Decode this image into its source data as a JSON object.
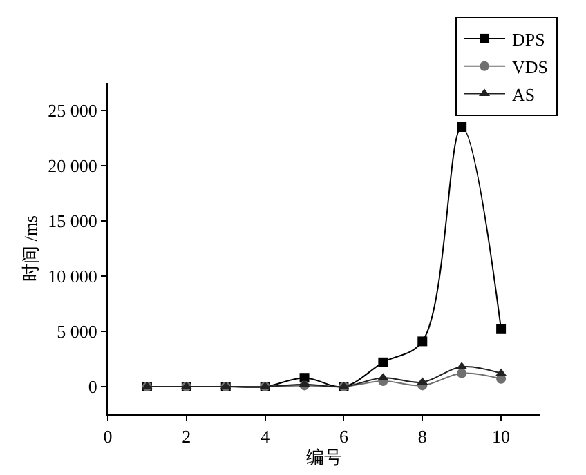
{
  "chart_data": {
    "type": "line",
    "xlabel": "编号",
    "ylabel": "时间 /ms",
    "x": [
      1,
      2,
      3,
      4,
      5,
      6,
      7,
      8,
      9,
      10
    ],
    "series": [
      {
        "name": "DPS",
        "color": "#000000",
        "marker": "square",
        "values": [
          0,
          0,
          0,
          0,
          800,
          0,
          2200,
          4100,
          23500,
          5200
        ]
      },
      {
        "name": "VDS",
        "color": "#707070",
        "marker": "circle",
        "values": [
          0,
          0,
          0,
          0,
          100,
          0,
          500,
          100,
          1200,
          700
        ]
      },
      {
        "name": "AS",
        "color": "#222222",
        "marker": "triangle",
        "values": [
          0,
          0,
          0,
          0,
          200,
          0,
          800,
          400,
          1800,
          1200
        ]
      }
    ],
    "xlim": [
      0,
      11
    ],
    "xticks": [
      0,
      2,
      4,
      6,
      8,
      10
    ],
    "ylim": [
      -2500,
      27500
    ],
    "yticks": [
      0,
      {
        "value": 5000,
        "label": "5 000"
      },
      {
        "value": 10000,
        "label": "10 000"
      },
      {
        "value": 15000,
        "label": "15 000"
      },
      {
        "value": 20000,
        "label": "20 000"
      },
      {
        "value": 25000,
        "label": "25 000"
      }
    ],
    "grid": false,
    "legend": "top right"
  }
}
